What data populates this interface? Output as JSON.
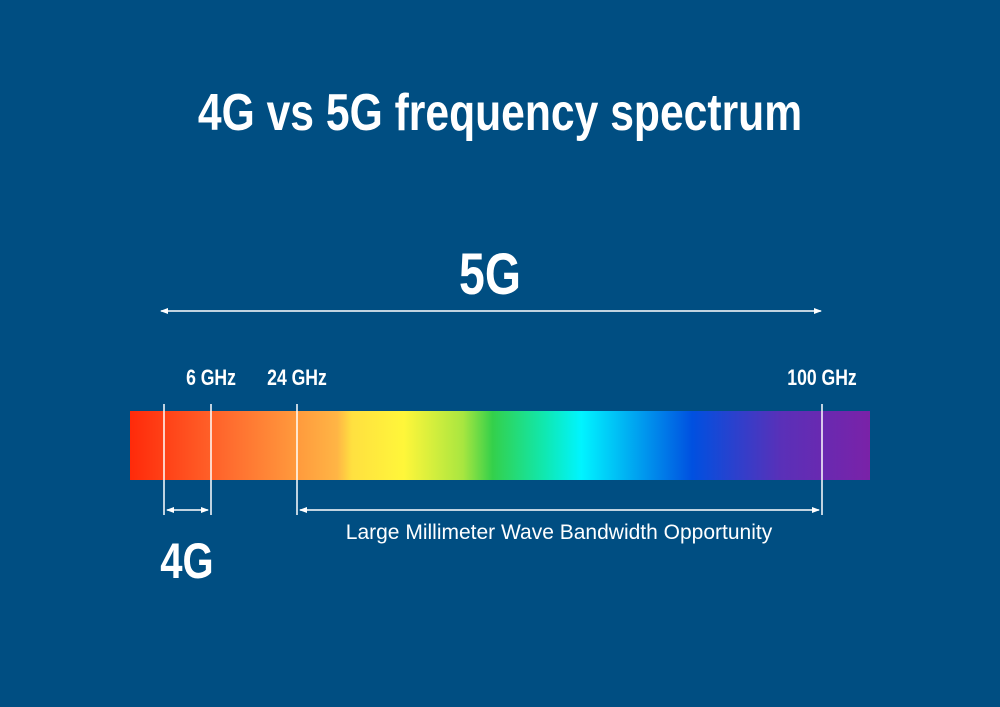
{
  "title": "4G vs 5G frequency spectrum",
  "labels": {
    "5g": "5G",
    "4g": "4G",
    "ghz_6": "6 GHz",
    "ghz_24": "24 GHz",
    "ghz_100": "100 GHz",
    "mmwave": "Large Millimeter Wave Bandwidth Opportunity"
  },
  "colors": {
    "background": "#004e82",
    "spectrum": [
      "#ff2a0a",
      "#ff7a30",
      "#ffb545",
      "#fff63a",
      "#30d04a",
      "#00f4ff",
      "#0050e0",
      "#5a30b8",
      "#7a22a8"
    ]
  }
}
